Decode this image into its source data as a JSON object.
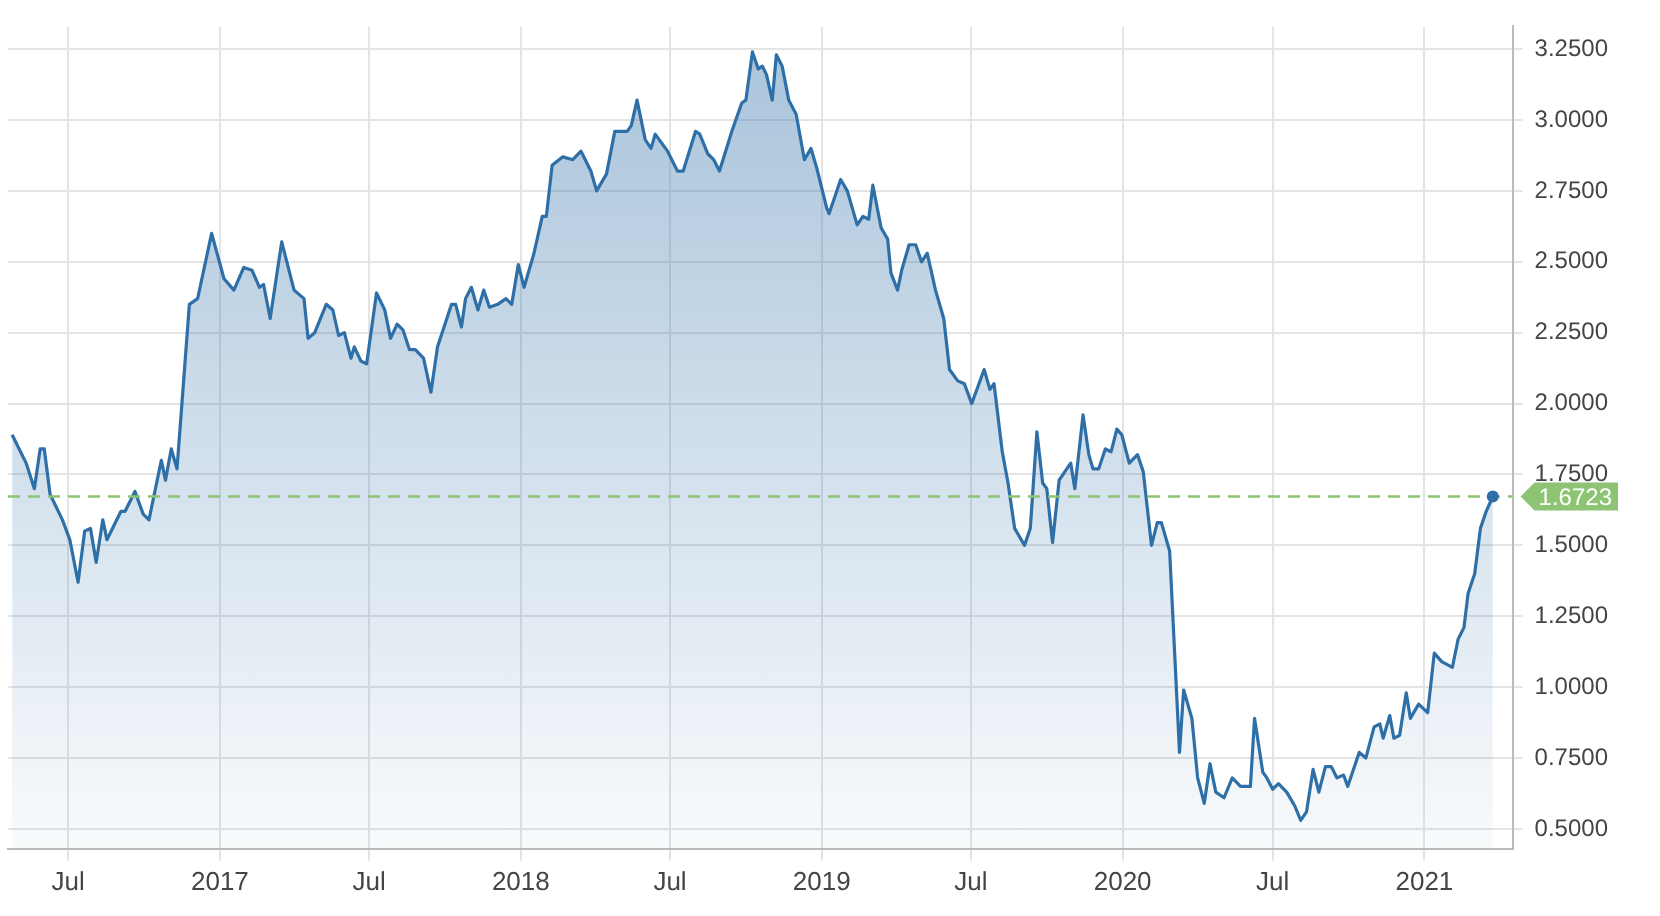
{
  "chart_data": {
    "type": "area",
    "x": [
      "2016-04-24",
      "2016-05-11",
      "2016-05-21",
      "2016-05-28",
      "2016-06-02",
      "2016-06-09",
      "2016-06-24",
      "2016-07-03",
      "2016-07-13",
      "2016-07-21",
      "2016-07-28",
      "2016-08-04",
      "2016-08-12",
      "2016-08-17",
      "2016-09-03",
      "2016-09-08",
      "2016-09-20",
      "2016-09-30",
      "2016-10-07",
      "2016-10-22",
      "2016-10-27",
      "2016-11-03",
      "2016-11-10",
      "2016-11-25",
      "2016-12-05",
      "2016-12-22",
      "2017-01-06",
      "2017-01-18",
      "2017-01-30",
      "2017-02-09",
      "2017-02-18",
      "2017-02-23",
      "2017-03-03",
      "2017-03-17",
      "2017-04-01",
      "2017-04-13",
      "2017-04-18",
      "2017-04-26",
      "2017-05-10",
      "2017-05-18",
      "2017-05-25",
      "2017-06-01",
      "2017-06-09",
      "2017-06-13",
      "2017-06-21",
      "2017-06-28",
      "2017-07-10",
      "2017-07-20",
      "2017-07-27",
      "2017-08-04",
      "2017-08-11",
      "2017-08-19",
      "2017-08-26",
      "2017-09-05",
      "2017-09-14",
      "2017-09-22",
      "2017-10-09",
      "2017-10-14",
      "2017-10-21",
      "2017-10-26",
      "2017-11-02",
      "2017-11-10",
      "2017-11-17",
      "2017-11-24",
      "2017-12-04",
      "2017-12-14",
      "2017-12-21",
      "2017-12-29",
      "2018-01-05",
      "2018-01-17",
      "2018-01-27",
      "2018-02-01",
      "2018-02-08",
      "2018-02-21",
      "2018-03-05",
      "2018-03-15",
      "2018-03-27",
      "2018-04-03",
      "2018-04-15",
      "2018-04-25",
      "2018-05-10",
      "2018-05-15",
      "2018-05-22",
      "2018-06-01",
      "2018-06-08",
      "2018-06-13",
      "2018-06-28",
      "2018-07-10",
      "2018-07-17",
      "2018-08-01",
      "2018-08-06",
      "2018-08-16",
      "2018-08-23",
      "2018-08-30",
      "2018-09-14",
      "2018-09-26",
      "2018-10-01",
      "2018-10-09",
      "2018-10-16",
      "2018-10-21",
      "2018-10-26",
      "2018-11-02",
      "2018-11-07",
      "2018-11-14",
      "2018-11-22",
      "2018-12-01",
      "2018-12-11",
      "2018-12-19",
      "2018-12-26",
      "2019-01-07",
      "2019-01-10",
      "2019-01-24",
      "2019-02-01",
      "2019-02-13",
      "2019-02-20",
      "2019-02-27",
      "2019-03-04",
      "2019-03-14",
      "2019-03-22",
      "2019-03-26",
      "2019-04-03",
      "2019-04-08",
      "2019-04-17",
      "2019-04-25",
      "2019-05-02",
      "2019-05-09",
      "2019-05-19",
      "2019-05-29",
      "2019-06-05",
      "2019-06-15",
      "2019-06-23",
      "2019-07-02",
      "2019-07-17",
      "2019-07-24",
      "2019-07-29",
      "2019-08-08",
      "2019-08-15",
      "2019-08-23",
      "2019-09-04",
      "2019-09-11",
      "2019-09-19",
      "2019-09-26",
      "2019-10-01",
      "2019-10-08",
      "2019-10-16",
      "2019-10-23",
      "2019-10-30",
      "2019-11-04",
      "2019-11-14",
      "2019-11-21",
      "2019-11-26",
      "2019-12-03",
      "2019-12-11",
      "2019-12-18",
      "2019-12-25",
      "2019-12-31",
      "2020-01-09",
      "2020-01-19",
      "2020-01-26",
      "2020-02-05",
      "2020-02-12",
      "2020-02-17",
      "2020-02-27",
      "2020-03-10",
      "2020-03-15",
      "2020-03-25",
      "2020-04-01",
      "2020-04-09",
      "2020-04-16",
      "2020-04-23",
      "2020-05-03",
      "2020-05-13",
      "2020-05-23",
      "2020-06-04",
      "2020-06-09",
      "2020-06-19",
      "2020-06-24",
      "2020-07-01",
      "2020-07-08",
      "2020-07-18",
      "2020-07-28",
      "2020-08-04",
      "2020-08-11",
      "2020-08-19",
      "2020-08-26",
      "2020-09-03",
      "2020-09-10",
      "2020-09-17",
      "2020-09-25",
      "2020-09-30",
      "2020-10-14",
      "2020-10-22",
      "2020-11-01",
      "2020-11-08",
      "2020-11-12",
      "2020-11-20",
      "2020-11-25",
      "2020-12-02",
      "2020-12-10",
      "2020-12-15",
      "2020-12-25",
      "2021-01-05",
      "2021-01-13",
      "2021-01-22",
      "2021-02-04",
      "2021-02-11",
      "2021-02-18",
      "2021-02-23",
      "2021-03-03",
      "2021-03-10",
      "2021-03-17",
      "2021-03-25"
    ],
    "values": [
      1.89,
      1.79,
      1.7,
      1.84,
      1.84,
      1.68,
      1.59,
      1.52,
      1.37,
      1.55,
      1.56,
      1.44,
      1.59,
      1.52,
      1.62,
      1.62,
      1.69,
      1.61,
      1.59,
      1.8,
      1.73,
      1.84,
      1.77,
      2.35,
      2.37,
      2.6,
      2.44,
      2.4,
      2.48,
      2.47,
      2.41,
      2.42,
      2.3,
      2.57,
      2.4,
      2.37,
      2.23,
      2.25,
      2.35,
      2.33,
      2.24,
      2.25,
      2.16,
      2.2,
      2.15,
      2.14,
      2.39,
      2.33,
      2.23,
      2.28,
      2.26,
      2.19,
      2.19,
      2.16,
      2.04,
      2.2,
      2.35,
      2.35,
      2.27,
      2.37,
      2.41,
      2.33,
      2.4,
      2.34,
      2.35,
      2.37,
      2.35,
      2.49,
      2.41,
      2.53,
      2.66,
      2.66,
      2.84,
      2.87,
      2.86,
      2.89,
      2.82,
      2.75,
      2.81,
      2.96,
      2.96,
      2.98,
      3.07,
      2.93,
      2.9,
      2.95,
      2.89,
      2.82,
      2.82,
      2.96,
      2.95,
      2.88,
      2.86,
      2.82,
      2.96,
      3.06,
      3.07,
      3.24,
      3.18,
      3.19,
      3.16,
      3.07,
      3.23,
      3.19,
      3.07,
      3.02,
      2.86,
      2.9,
      2.83,
      2.69,
      2.67,
      2.79,
      2.75,
      2.63,
      2.66,
      2.65,
      2.77,
      2.62,
      2.58,
      2.46,
      2.4,
      2.47,
      2.56,
      2.56,
      2.5,
      2.53,
      2.4,
      2.3,
      2.12,
      2.08,
      2.07,
      2.0,
      2.12,
      2.05,
      2.07,
      1.83,
      1.72,
      1.56,
      1.5,
      1.56,
      1.9,
      1.72,
      1.7,
      1.51,
      1.73,
      1.76,
      1.79,
      1.7,
      1.96,
      1.82,
      1.77,
      1.77,
      1.84,
      1.83,
      1.91,
      1.89,
      1.79,
      1.82,
      1.76,
      1.5,
      1.58,
      1.58,
      1.48,
      0.77,
      0.99,
      0.89,
      0.68,
      0.59,
      0.73,
      0.63,
      0.61,
      0.68,
      0.65,
      0.65,
      0.89,
      0.7,
      0.68,
      0.64,
      0.66,
      0.63,
      0.58,
      0.53,
      0.56,
      0.71,
      0.63,
      0.72,
      0.72,
      0.68,
      0.69,
      0.65,
      0.77,
      0.75,
      0.86,
      0.87,
      0.82,
      0.9,
      0.82,
      0.83,
      0.98,
      0.89,
      0.94,
      0.91,
      1.12,
      1.09,
      1.07,
      1.17,
      1.21,
      1.33,
      1.4,
      1.56,
      1.62,
      1.6723
    ],
    "color": "#2e6fa7",
    "xlim": [
      "2016-04-19",
      "2021-04-18"
    ],
    "xticks": [
      {
        "value": "2016-07-01",
        "label": "Jul"
      },
      {
        "value": "2017-01-01",
        "label": "2017"
      },
      {
        "value": "2017-07-01",
        "label": "Jul"
      },
      {
        "value": "2018-01-01",
        "label": "2018"
      },
      {
        "value": "2018-07-01",
        "label": "Jul"
      },
      {
        "value": "2019-01-01",
        "label": "2019"
      },
      {
        "value": "2019-07-01",
        "label": "Jul"
      },
      {
        "value": "2020-01-01",
        "label": "2020"
      },
      {
        "value": "2020-07-01",
        "label": "Jul"
      },
      {
        "value": "2021-01-01",
        "label": "2021"
      }
    ],
    "ylim": [
      0.43,
      3.33
    ],
    "yticks": [
      {
        "value": 0.5,
        "label": "0.5000"
      },
      {
        "value": 0.75,
        "label": "0.7500"
      },
      {
        "value": 1,
        "label": "1.0000"
      },
      {
        "value": 1.25,
        "label": "1.2500"
      },
      {
        "value": 1.5,
        "label": "1.5000"
      },
      {
        "value": 1.75,
        "label": "1.7500"
      },
      {
        "value": 2,
        "label": "2.0000"
      },
      {
        "value": 2.25,
        "label": "2.2500"
      },
      {
        "value": 2.5,
        "label": "2.5000"
      },
      {
        "value": 2.75,
        "label": "2.7500"
      },
      {
        "value": 3,
        "label": "3.0000"
      },
      {
        "value": 3.25,
        "label": "3.2500"
      }
    ],
    "ref_lines": [
      {
        "axis": "y",
        "value": 1.6723,
        "label": "1.6723",
        "color": "#8cc474",
        "line_style": "dashed"
      }
    ],
    "grid": true,
    "legend": false
  }
}
